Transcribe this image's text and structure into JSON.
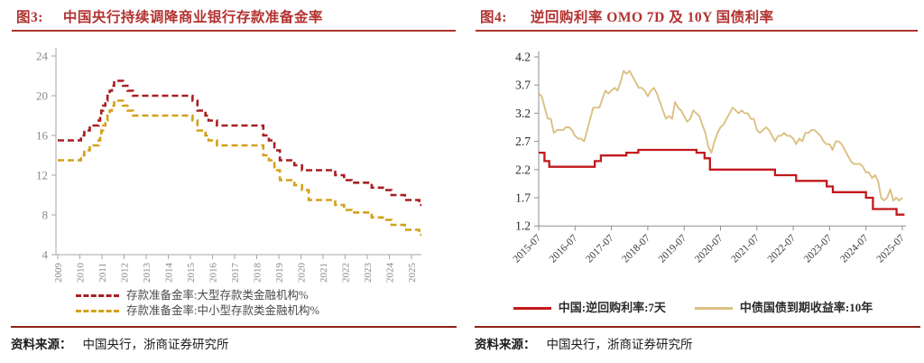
{
  "figures": {
    "fig3": {
      "tag": "图3:",
      "title": "中国央行持续调降商业银行存款准备金率",
      "source_label": "资料来源：",
      "source": "中国央行，浙商证券研究所"
    },
    "fig4": {
      "tag": "图4:",
      "title": "逆回购利率 OMO 7D 及 10Y 国债利率",
      "source_label": "资料来源：",
      "source": "中国央行，浙商证券研究所"
    }
  },
  "chart_data": [
    {
      "type": "line",
      "subtype": "step-dashed",
      "title": "中国央行持续调降商业银行存款准备金率",
      "xlabel": "",
      "ylabel": "",
      "ylim": [
        4,
        24
      ],
      "yticks": [
        24,
        20,
        16,
        12,
        8,
        4
      ],
      "xticks": [
        2009,
        2010,
        2011,
        2012,
        2013,
        2014,
        2015,
        2016,
        2017,
        2018,
        2019,
        2020,
        2021,
        2022,
        2023,
        2024,
        2025
      ],
      "x_end": 2025.45,
      "grid": false,
      "legend_position": "bottom-left",
      "axis_color": "#a6a6a6",
      "tick_label_color": "#8a8a8a",
      "series": [
        {
          "name": "存款准备金率:大型存款类金融机构%",
          "color": "#A81E22",
          "unit": "%",
          "points": [
            [
              2009.0,
              15.5
            ],
            [
              2010.05,
              16
            ],
            [
              2010.2,
              16.5
            ],
            [
              2010.45,
              17
            ],
            [
              2010.85,
              17.5
            ],
            [
              2010.92,
              18
            ],
            [
              2010.97,
              18.5
            ],
            [
              2011.05,
              19
            ],
            [
              2011.15,
              19.5
            ],
            [
              2011.25,
              20
            ],
            [
              2011.35,
              20.5
            ],
            [
              2011.45,
              21
            ],
            [
              2011.55,
              21.5
            ],
            [
              2011.95,
              21
            ],
            [
              2012.15,
              20.5
            ],
            [
              2012.4,
              20
            ],
            [
              2015.1,
              19.5
            ],
            [
              2015.32,
              18.5
            ],
            [
              2015.68,
              18
            ],
            [
              2015.82,
              17.5
            ],
            [
              2016.2,
              17
            ],
            [
              2018.3,
              16
            ],
            [
              2018.55,
              15.5
            ],
            [
              2018.8,
              14.5
            ],
            [
              2019.05,
              13.5
            ],
            [
              2019.7,
              13
            ],
            [
              2020.05,
              12.5
            ],
            [
              2021.55,
              12
            ],
            [
              2021.95,
              11.5
            ],
            [
              2022.3,
              11.25
            ],
            [
              2023.2,
              10.75
            ],
            [
              2023.7,
              10.5
            ],
            [
              2024.1,
              10
            ],
            [
              2024.7,
              9.5
            ],
            [
              2025.35,
              9
            ]
          ]
        },
        {
          "name": "存款准备金率:中小型存款类金融机构%",
          "color": "#D3A019",
          "unit": "%",
          "points": [
            [
              2009.0,
              13.5
            ],
            [
              2010.05,
              14
            ],
            [
              2010.2,
              14.5
            ],
            [
              2010.45,
              15
            ],
            [
              2010.85,
              15.5
            ],
            [
              2010.92,
              16
            ],
            [
              2010.97,
              16.5
            ],
            [
              2011.05,
              17
            ],
            [
              2011.15,
              17.5
            ],
            [
              2011.25,
              18
            ],
            [
              2011.35,
              18.5
            ],
            [
              2011.45,
              19
            ],
            [
              2011.55,
              19.5
            ],
            [
              2011.95,
              19
            ],
            [
              2012.15,
              18.5
            ],
            [
              2012.4,
              18
            ],
            [
              2015.1,
              17.5
            ],
            [
              2015.32,
              16.5
            ],
            [
              2015.68,
              16
            ],
            [
              2015.82,
              15.5
            ],
            [
              2016.2,
              15
            ],
            [
              2018.3,
              14
            ],
            [
              2018.55,
              13.5
            ],
            [
              2018.8,
              12.5
            ],
            [
              2019.05,
              11.5
            ],
            [
              2019.7,
              11
            ],
            [
              2020.05,
              10.5
            ],
            [
              2020.35,
              9.5
            ],
            [
              2021.55,
              9
            ],
            [
              2021.95,
              8.5
            ],
            [
              2022.3,
              8.25
            ],
            [
              2023.2,
              7.75
            ],
            [
              2023.7,
              7.5
            ],
            [
              2024.1,
              7
            ],
            [
              2024.7,
              6.5
            ],
            [
              2025.35,
              6
            ]
          ]
        }
      ]
    },
    {
      "type": "line",
      "subtype": "mixed",
      "title": "逆回购利率 OMO 7D 及 10Y 国债利率",
      "xlabel": "",
      "ylabel": "",
      "ylim": [
        1.2,
        4.2
      ],
      "yticks": [
        4.2,
        3.7,
        3.2,
        2.7,
        2.2,
        1.7,
        1.2
      ],
      "xtick_labels": [
        "2015-07",
        "2016-07",
        "2017-07",
        "2018-07",
        "2019-07",
        "2020-07",
        "2021-07",
        "2022-07",
        "2023-07",
        "2024-07",
        "2025-07"
      ],
      "x_start": 2015.54,
      "x_end": 2025.6,
      "grid": false,
      "legend_position": "bottom-center",
      "axis_color": "#8f8f8f",
      "ytick_label_color": "#262626",
      "xtick_label_color": "#3a3a3a",
      "series": [
        {
          "name": "中国:逆回购利率:7天",
          "style": "step",
          "color": "#C2181C",
          "unit": "%",
          "points": [
            [
              2015.54,
              2.5
            ],
            [
              2015.7,
              2.35
            ],
            [
              2015.83,
              2.25
            ],
            [
              2017.08,
              2.35
            ],
            [
              2017.25,
              2.45
            ],
            [
              2017.95,
              2.5
            ],
            [
              2018.28,
              2.55
            ],
            [
              2019.88,
              2.5
            ],
            [
              2020.1,
              2.4
            ],
            [
              2020.25,
              2.2
            ],
            [
              2022.04,
              2.1
            ],
            [
              2022.62,
              2.0
            ],
            [
              2023.46,
              1.9
            ],
            [
              2023.63,
              1.8
            ],
            [
              2024.54,
              1.7
            ],
            [
              2024.73,
              1.5
            ],
            [
              2025.38,
              1.4
            ]
          ]
        },
        {
          "name": "中债国债到期收益率:10年",
          "style": "line",
          "color": "#DCC083",
          "unit": "%",
          "x_start": 2015.54,
          "x_interval": 0.08333,
          "values": [
            3.55,
            3.5,
            3.3,
            3.1,
            3.1,
            2.85,
            2.9,
            2.9,
            2.9,
            2.95,
            2.95,
            2.9,
            2.8,
            2.75,
            2.75,
            2.7,
            2.9,
            3.1,
            3.3,
            3.3,
            3.3,
            3.45,
            3.6,
            3.55,
            3.6,
            3.65,
            3.6,
            3.75,
            3.95,
            3.9,
            3.95,
            3.85,
            3.75,
            3.65,
            3.65,
            3.6,
            3.5,
            3.6,
            3.65,
            3.55,
            3.4,
            3.25,
            3.1,
            3.15,
            3.1,
            3.4,
            3.3,
            3.25,
            3.15,
            3.05,
            3.1,
            3.25,
            3.2,
            3.15,
            3.0,
            2.85,
            2.6,
            2.5,
            2.7,
            2.85,
            2.95,
            3.0,
            3.1,
            3.2,
            3.3,
            3.25,
            3.2,
            3.25,
            3.2,
            3.2,
            3.1,
            3.1,
            2.9,
            2.85,
            2.9,
            2.95,
            2.9,
            2.8,
            2.7,
            2.8,
            2.8,
            2.85,
            2.8,
            2.8,
            2.75,
            2.65,
            2.75,
            2.7,
            2.85,
            2.85,
            2.9,
            2.9,
            2.85,
            2.8,
            2.7,
            2.65,
            2.65,
            2.55,
            2.7,
            2.7,
            2.65,
            2.55,
            2.45,
            2.35,
            2.3,
            2.3,
            2.3,
            2.25,
            2.15,
            2.15,
            2.05,
            2.1,
            2.0,
            1.7,
            1.65,
            1.7,
            1.85,
            1.65,
            1.7,
            1.65,
            1.7
          ]
        }
      ]
    }
  ]
}
